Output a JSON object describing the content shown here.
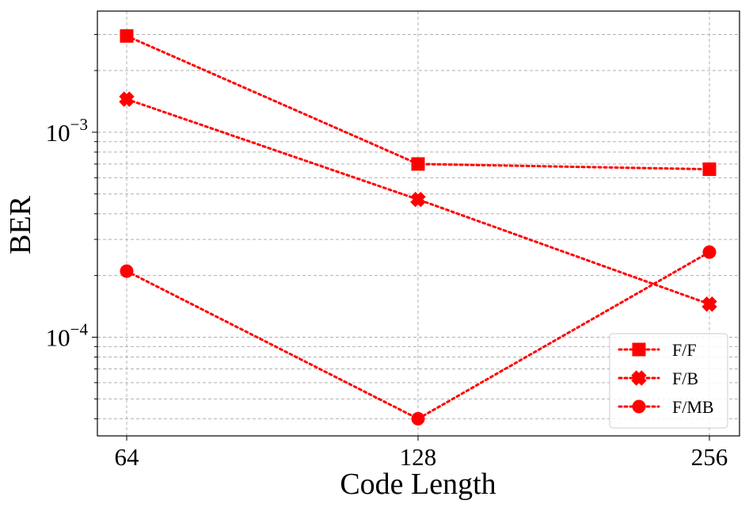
{
  "chart_data": {
    "type": "line",
    "xlabel": "Code Length",
    "ylabel": "BER",
    "x_scale": "log2",
    "y_scale": "log",
    "x": [
      64,
      128,
      256
    ],
    "x_tick_labels": [
      "64",
      "128",
      "256"
    ],
    "y_tick_labels": [
      {
        "base": "10",
        "exp": "−3",
        "value": 0.001
      },
      {
        "base": "10",
        "exp": "−4",
        "value": 0.0001
      }
    ],
    "ylim": [
      3.3e-05,
      0.0039
    ],
    "grid": true,
    "legend_position": "lower-right",
    "series": [
      {
        "name": "F/F",
        "marker": "square",
        "color": "#ff0000",
        "linestyle": "dotted",
        "values": [
          0.00295,
          0.0007,
          0.00066
        ]
      },
      {
        "name": "F/B",
        "marker": "x",
        "color": "#ff0000",
        "linestyle": "dotted",
        "values": [
          0.00145,
          0.00047,
          0.000145
        ]
      },
      {
        "name": "F/MB",
        "marker": "circle",
        "color": "#ff0000",
        "linestyle": "dotted",
        "values": [
          0.00021,
          4e-05,
          0.00026
        ]
      }
    ]
  }
}
